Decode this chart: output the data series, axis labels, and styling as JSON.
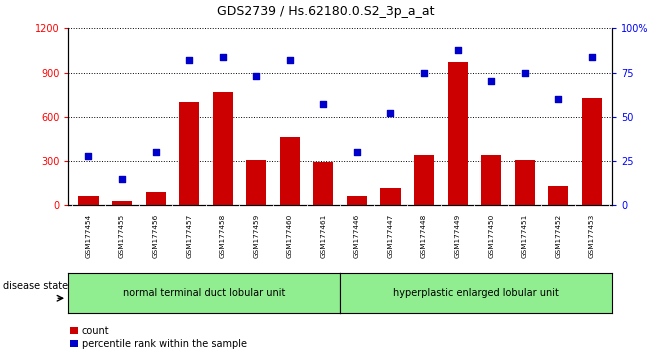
{
  "title": "GDS2739 / Hs.62180.0.S2_3p_a_at",
  "samples": [
    "GSM177454",
    "GSM177455",
    "GSM177456",
    "GSM177457",
    "GSM177458",
    "GSM177459",
    "GSM177460",
    "GSM177461",
    "GSM177446",
    "GSM177447",
    "GSM177448",
    "GSM177449",
    "GSM177450",
    "GSM177451",
    "GSM177452",
    "GSM177453"
  ],
  "counts": [
    60,
    30,
    90,
    700,
    770,
    310,
    460,
    295,
    65,
    120,
    340,
    970,
    340,
    310,
    130,
    730
  ],
  "percentiles": [
    28,
    15,
    30,
    82,
    84,
    73,
    82,
    57,
    30,
    52,
    75,
    88,
    70,
    75,
    60,
    84
  ],
  "group1_label": "normal terminal duct lobular unit",
  "group2_label": "hyperplastic enlarged lobular unit",
  "group1_count": 8,
  "group2_count": 8,
  "bar_color": "#cc0000",
  "scatter_color": "#0000cc",
  "ylim_left": [
    0,
    1200
  ],
  "ylim_right": [
    0,
    100
  ],
  "yticks_left": [
    0,
    300,
    600,
    900,
    1200
  ],
  "yticks_right": [
    0,
    25,
    50,
    75,
    100
  ],
  "tick_area_color": "#cccccc",
  "group_bg_color": "#90ee90",
  "disease_state_label": "disease state",
  "legend_count_label": "count",
  "legend_percentile_label": "percentile rank within the sample"
}
